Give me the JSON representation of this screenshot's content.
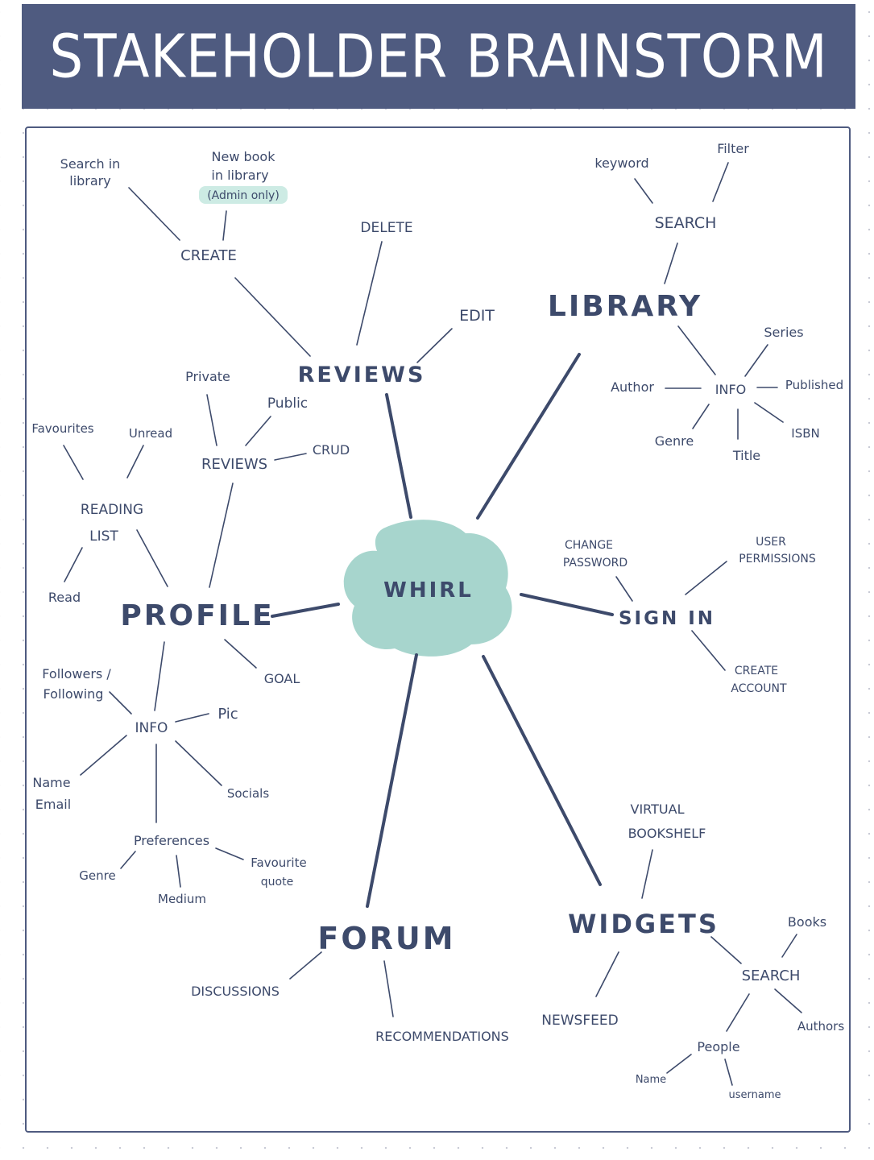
{
  "title": "STAKEHOLDER BRAINSTORM",
  "center": {
    "label": "WHIRL",
    "color": "#a7d5cd"
  },
  "colors": {
    "banner": "#4f5b80",
    "ink": "#3d4a6b",
    "highlight": "#cdebe4"
  },
  "nodes": {
    "reviews": "REVIEWS",
    "reviews_create": "CREATE",
    "search_in_library_1": "Search in",
    "search_in_library_2": "library",
    "new_book_1": "New book",
    "new_book_2": "in library",
    "admin_only": "(Admin only)",
    "delete": "DELETE",
    "edit": "EDIT",
    "library": "LIBRARY",
    "library_search": "SEARCH",
    "keyword": "keyword",
    "filter": "Filter",
    "library_info": "INFO",
    "series": "Series",
    "author": "Author",
    "published": "Published",
    "library_genre": "Genre",
    "title_field": "Title",
    "isbn": "ISBN",
    "sign_in": "SIGN IN",
    "change_password_1": "CHANGE",
    "change_password_2": "PASSWORD",
    "user_permissions_1": "USER",
    "user_permissions_2": "PERMISSIONS",
    "create_account_1": "CREATE",
    "create_account_2": "ACCOUNT",
    "widgets": "WIDGETS",
    "virtual_bookshelf_1": "VIRTUAL",
    "virtual_bookshelf_2": "BOOKSHELF",
    "newsfeed": "NEWSFEED",
    "widgets_search": "SEARCH",
    "books": "Books",
    "authors": "Authors",
    "people": "People",
    "people_name": "Name",
    "username": "username",
    "forum": "FORUM",
    "discussions": "DISCUSSIONS",
    "recommendations": "RECOMMENDATIONS",
    "profile": "PROFILE",
    "goal": "GOAL",
    "reading_list_1": "READING",
    "reading_list_2": "LIST",
    "favourites": "Favourites",
    "unread": "Unread",
    "read": "Read",
    "profile_reviews": "REVIEWS",
    "private": "Private",
    "public": "Public",
    "crud": "CRUD",
    "profile_info": "INFO",
    "followers_1": "Followers /",
    "followers_2": "Following",
    "pic": "Pic",
    "name_email_1": "Name",
    "name_email_2": "Email",
    "socials": "Socials",
    "preferences": "Preferences",
    "pref_genre": "Genre",
    "medium": "Medium",
    "favourite_quote_1": "Favourite",
    "favourite_quote_2": "quote"
  }
}
